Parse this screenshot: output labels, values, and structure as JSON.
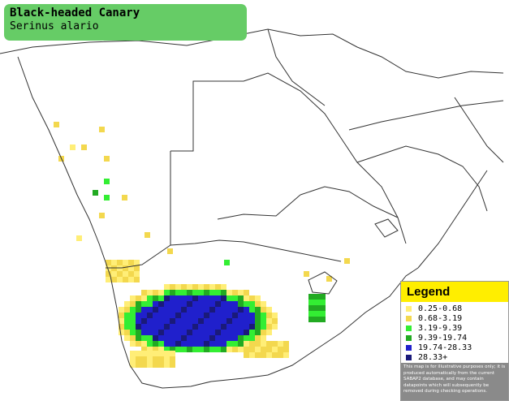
{
  "title": {
    "common_name": "Black-headed Canary",
    "scientific_name": "Serinus alario"
  },
  "legend": {
    "heading": "Legend",
    "items": [
      {
        "label": "0.25-0.68",
        "color": "#ffee77"
      },
      {
        "label": "0.68-3.19",
        "color": "#f3d84e"
      },
      {
        "label": "3.19-9.39",
        "color": "#33ee33"
      },
      {
        "label": "9.39-19.74",
        "color": "#22aa22"
      },
      {
        "label": "19.74-28.33",
        "color": "#2020cc"
      },
      {
        "label": "28.33+",
        "color": "#1a1a7a"
      }
    ],
    "note": "This map is for illustrative purposes only; it is produced automatically from the current SABAP2 database, and may contain datapoints which will subsequently be removed during checking operations."
  },
  "colors": {
    "title_bg": "#66cc66",
    "land": "#ffffff",
    "border_line": "#333333"
  }
}
